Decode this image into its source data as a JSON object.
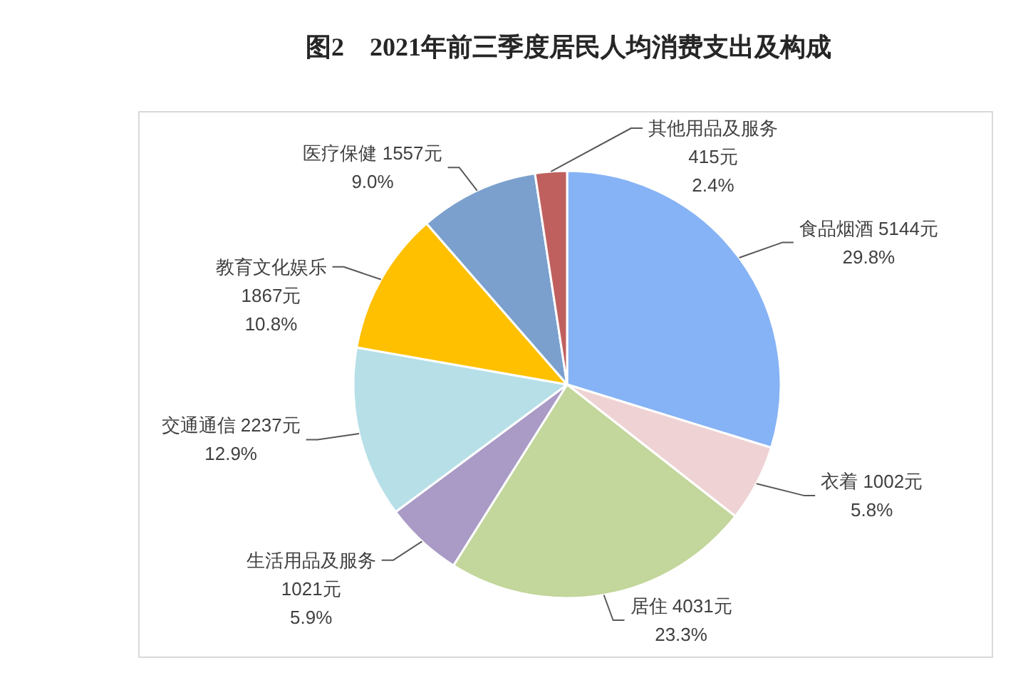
{
  "chart_data": {
    "type": "pie",
    "title": "图2    2021年前三季度居民人均消费支出及构成",
    "categories": [
      "食品烟酒",
      "衣着",
      "居住",
      "生活用品及服务",
      "交通通信",
      "教育文化娱乐",
      "医疗保健",
      "其他用品及服务"
    ],
    "values": [
      5144,
      1002,
      4031,
      1021,
      2237,
      1867,
      1557,
      415
    ],
    "colors": [
      "#86b3f5",
      "#efd3d4",
      "#c3d69b",
      "#a99bc5",
      "#b7dfe8",
      "#ffc000",
      "#7ba0cd",
      "#c0605e"
    ],
    "value_labels": [
      "5144元\n29.8%",
      "1002元\n5.8%",
      "4031元\n23.3%",
      "1021元\n5.9%",
      "2237元\n12.9%",
      "1867元\n10.8%",
      "1557元\n9.0%",
      "415元\n2.4%"
    ]
  }
}
